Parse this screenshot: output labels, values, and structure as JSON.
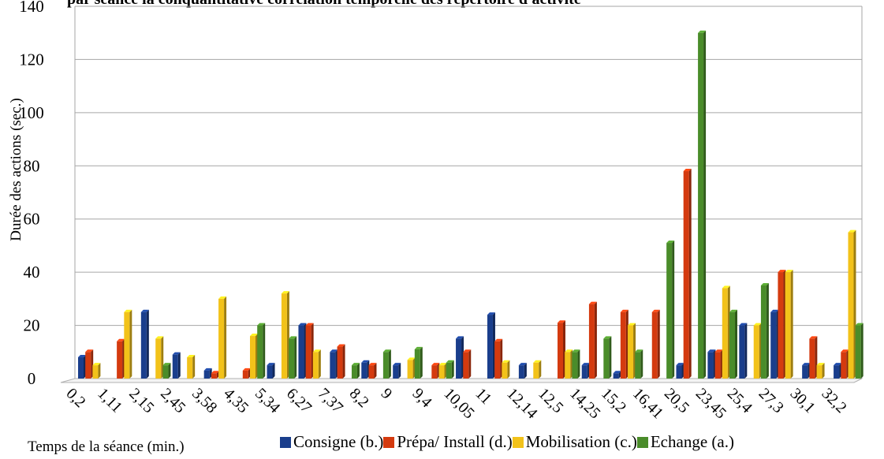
{
  "chart_data": {
    "type": "bar",
    "title": "par séance la conquantitative correlation temporelle des répertoire d'activité",
    "xlabel": "Temps de la séance (min.)",
    "ylabel": "Durée des actions (sec.)",
    "ylim": [
      0,
      140
    ],
    "yticks": [
      "0",
      "20",
      "40",
      "60",
      "80",
      "100",
      "120",
      "140"
    ],
    "grid": true,
    "legend_position": "bottom",
    "x_tick_labels": [
      "0,2",
      "1,11",
      "2,15",
      "2,45",
      "3,58",
      "4,35",
      "5,34",
      "6,27",
      "7,37",
      "8,2",
      "9",
      "9,4",
      "10,05",
      "11",
      "12,14",
      "12,5",
      "14,25",
      "15,2",
      "16,41",
      "20,5",
      "23,45",
      "25,4",
      "27,3",
      "30,1",
      "32,2"
    ],
    "series": [
      {
        "name": "Consigne (b.)",
        "color": "#1a3e8c",
        "values": [
          8,
          0,
          25,
          9,
          3,
          0,
          5,
          20,
          10,
          6,
          5,
          0,
          15,
          24,
          5,
          0,
          5,
          2,
          0,
          5,
          10,
          20,
          25,
          5,
          5
        ]
      },
      {
        "name": "Prépa/ Install (d.)",
        "color": "#d43a0f",
        "values": [
          10,
          14,
          0,
          0,
          2,
          3,
          0,
          20,
          12,
          5,
          0,
          5,
          10,
          14,
          0,
          21,
          28,
          25,
          25,
          78,
          10,
          0,
          40,
          15,
          10
        ]
      },
      {
        "name": "Mobilisation (c.)",
        "color": "#f2c21a",
        "values": [
          5,
          25,
          15,
          8,
          30,
          16,
          32,
          10,
          0,
          0,
          7,
          5,
          0,
          6,
          6,
          10,
          0,
          20,
          0,
          0,
          34,
          20,
          40,
          5,
          55
        ]
      },
      {
        "name": "Echange (a.)",
        "color": "#4a8c2a",
        "values": [
          0,
          0,
          5,
          0,
          0,
          20,
          15,
          0,
          5,
          10,
          11,
          6,
          0,
          0,
          0,
          10,
          15,
          10,
          51,
          130,
          25,
          35,
          0,
          0,
          20
        ]
      }
    ]
  },
  "legend": {
    "items": [
      {
        "label": "Consigne (b.)",
        "color": "#1a3e8c"
      },
      {
        "label": "Prépa/ Install (d.)",
        "color": "#d43a0f"
      },
      {
        "label": "Mobilisation (c.)",
        "color": "#f2c21a"
      },
      {
        "label": "Echange (a.)",
        "color": "#4a8c2a"
      }
    ]
  }
}
